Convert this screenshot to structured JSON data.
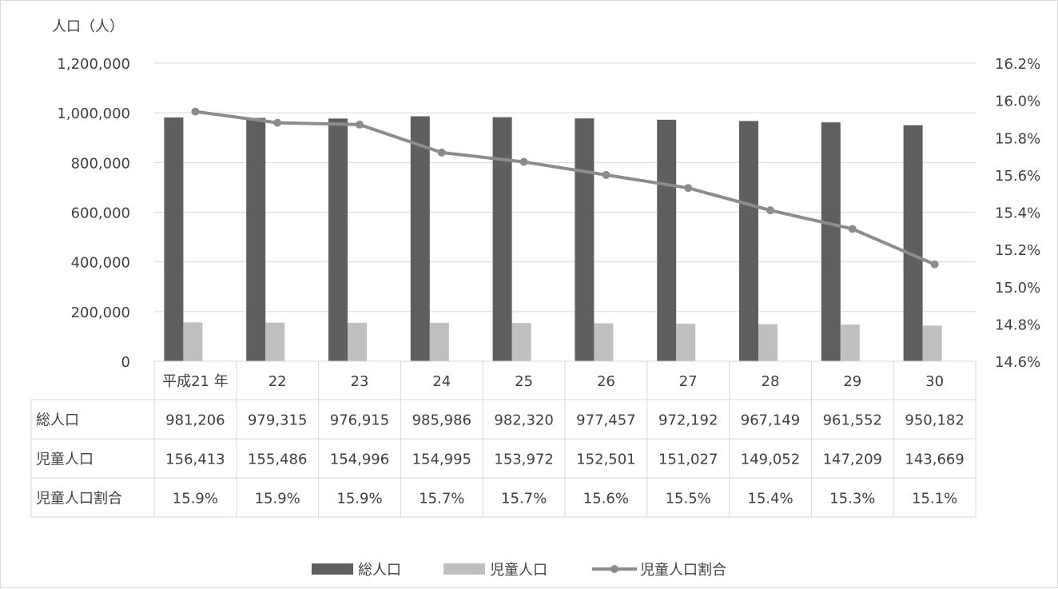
{
  "chart_data": {
    "type": "bar",
    "ylabel": "人口（人）",
    "categories": [
      "平成21 年",
      "22",
      "23",
      "24",
      "25",
      "26",
      "27",
      "28",
      "29",
      "30"
    ],
    "ylim": [
      0,
      1200000
    ],
    "y2lim": [
      14.6,
      16.2
    ],
    "y_ticks": [
      "0",
      "200,000",
      "400,000",
      "600,000",
      "800,000",
      "1,000,000",
      "1,200,000"
    ],
    "y2_ticks": [
      "14.6%",
      "14.8%",
      "15.0%",
      "15.2%",
      "15.4%",
      "15.6%",
      "15.8%",
      "16.0%",
      "16.2%"
    ],
    "grid": true,
    "legend_position": "bottom",
    "series": [
      {
        "name": "総人口",
        "type": "bar",
        "axis": "left",
        "color": "#5f5f5f",
        "values": [
          981206,
          979315,
          976915,
          985986,
          982320,
          977457,
          972192,
          967149,
          961552,
          950182
        ],
        "labels": [
          "981,206",
          "979,315",
          "976,915",
          "985,986",
          "982,320",
          "977,457",
          "972,192",
          "967,149",
          "961,552",
          "950,182"
        ]
      },
      {
        "name": "児童人口",
        "type": "bar",
        "axis": "left",
        "color": "#bfbfbf",
        "values": [
          156413,
          155486,
          154996,
          154995,
          153972,
          152501,
          151027,
          149052,
          147209,
          143669
        ],
        "labels": [
          "156,413",
          "155,486",
          "154,996",
          "154,995",
          "153,972",
          "152,501",
          "151,027",
          "149,052",
          "147,209",
          "143,669"
        ]
      },
      {
        "name": "児童人口割合",
        "type": "line",
        "axis": "right",
        "color": "#8c8c8c",
        "values": [
          15.94,
          15.88,
          15.87,
          15.72,
          15.67,
          15.6,
          15.53,
          15.41,
          15.31,
          15.12
        ],
        "labels": [
          "15.9%",
          "15.9%",
          "15.9%",
          "15.7%",
          "15.7%",
          "15.6%",
          "15.5%",
          "15.4%",
          "15.3%",
          "15.1%"
        ]
      }
    ]
  }
}
